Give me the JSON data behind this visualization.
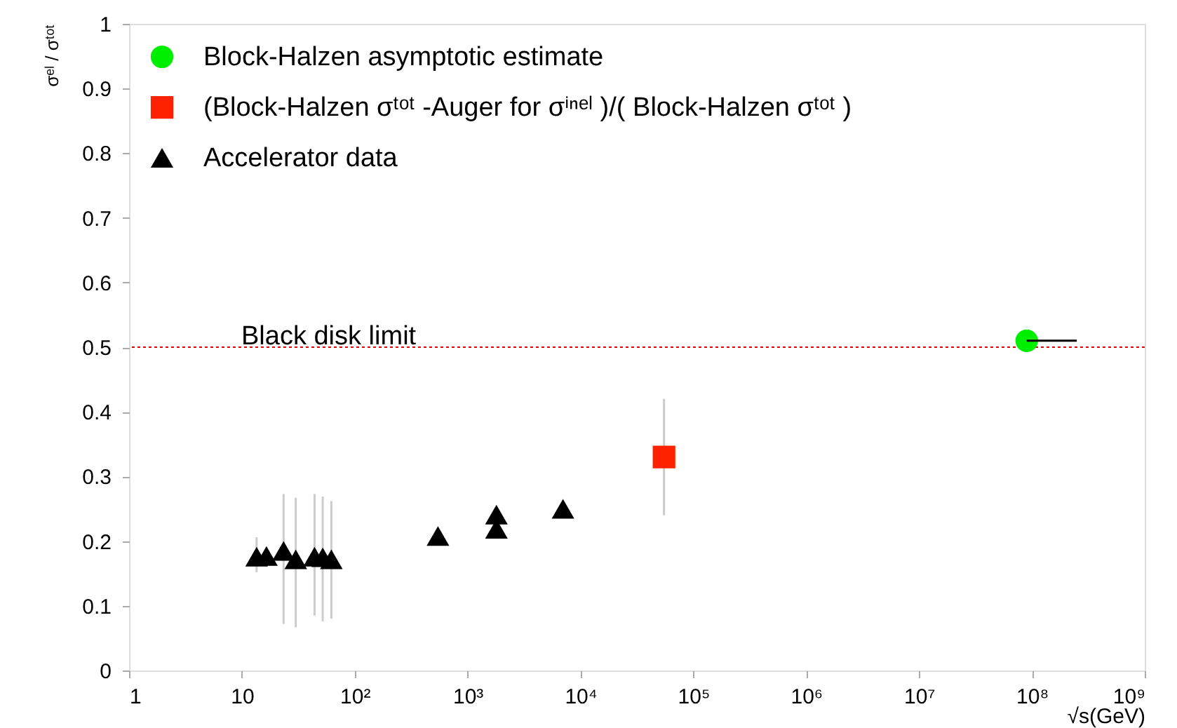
{
  "chart_data": {
    "type": "scatter",
    "xlabel": "√s(GeV)",
    "ylabel": "σᵉˡ / σᵗᵒᵗ",
    "log": "x",
    "xlim": [
      1,
      1000000000
    ],
    "ylim": [
      0,
      1
    ],
    "xticks": [
      1,
      10,
      {
        "value": 100,
        "label": "10²"
      },
      {
        "value": 1000,
        "label": "10³"
      },
      {
        "value": 10000,
        "label": "10⁴"
      },
      {
        "value": 100000,
        "label": "10⁵"
      },
      {
        "value": 1000000,
        "label": "10⁶"
      },
      {
        "value": 10000000,
        "label": "10⁷"
      },
      {
        "value": 100000000,
        "label": "10⁸"
      },
      {
        "value": 1000000000,
        "label": "10⁹"
      }
    ],
    "yticks": [
      0,
      0.1,
      0.2,
      0.3,
      0.4,
      0.5,
      0.6,
      0.7,
      0.8,
      0.9,
      1
    ],
    "grid": false,
    "legend": "top left",
    "series": [
      {
        "name": "Block-Halzen asymptotic estimate",
        "color": "#00ee00",
        "marker": "circle",
        "x": [
          90000000
        ],
        "values": [
          0.51
        ],
        "xerrors": [
          [
            90000000,
            250000000
          ]
        ]
      },
      {
        "name": "(Block-Halzen σᵗᵒᵗ -Auger for σⁱⁿᵉˡ )/( Block-Halzen σᵗᵒᵗ )",
        "color": "#ff2200",
        "marker": "square",
        "x": [
          55000
        ],
        "values": [
          0.33
        ],
        "errors": [
          [
            0.24,
            0.42
          ]
        ]
      },
      {
        "name": "Accelerator data",
        "color": "#000000",
        "marker": "triangle",
        "x": [
          13.5,
          16.5,
          23.4,
          30,
          44,
          52,
          62,
          546,
          1800,
          1800,
          7000
        ],
        "values": [
          0.176,
          0.177,
          0.185,
          0.172,
          0.176,
          0.175,
          0.172,
          0.208,
          0.219,
          0.241,
          0.25
        ],
        "errors": [
          [
            0.152,
            0.206
          ],
          null,
          [
            0.072,
            0.273
          ],
          [
            0.067,
            0.267
          ],
          [
            0.085,
            0.273
          ],
          [
            0.076,
            0.269
          ],
          [
            0.08,
            0.262
          ],
          null,
          null,
          null,
          null
        ]
      }
    ],
    "ref_lines": [
      {
        "axis": "y",
        "value": 0.5,
        "label": "Black disk limit",
        "color": "#dd0000",
        "line_style": "dotted"
      }
    ]
  }
}
